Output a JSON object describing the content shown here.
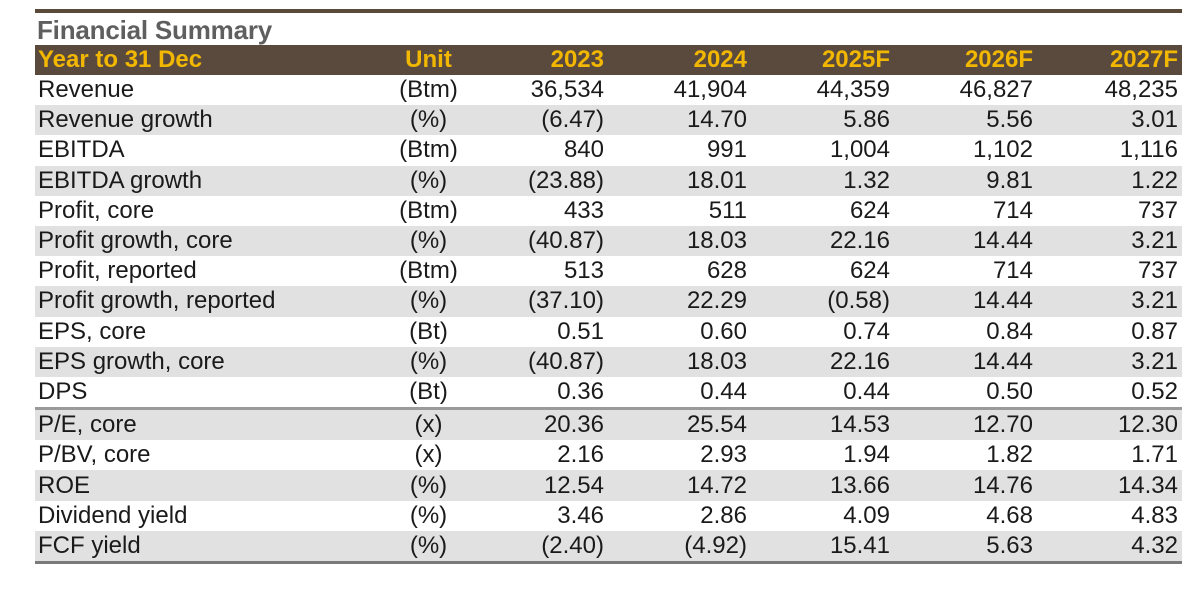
{
  "title": "Financial Summary",
  "header": {
    "label": "Year to 31 Dec",
    "unit": "Unit",
    "years": [
      "2023",
      "2024",
      "2025F",
      "2026F",
      "2027F"
    ]
  },
  "rows": [
    {
      "label": "Revenue",
      "unit": "(Btm)",
      "values": [
        "36,534",
        "41,904",
        "44,359",
        "46,827",
        "48,235"
      ]
    },
    {
      "label": "Revenue growth",
      "unit": "(%)",
      "values": [
        "(6.47)",
        "14.70",
        "5.86",
        "5.56",
        "3.01"
      ]
    },
    {
      "label": "EBITDA",
      "unit": "(Btm)",
      "values": [
        "840",
        "991",
        "1,004",
        "1,102",
        "1,116"
      ]
    },
    {
      "label": "EBITDA growth",
      "unit": "(%)",
      "values": [
        "(23.88)",
        "18.01",
        "1.32",
        "9.81",
        "1.22"
      ]
    },
    {
      "label": "Profit, core",
      "unit": "(Btm)",
      "values": [
        "433",
        "511",
        "624",
        "714",
        "737"
      ]
    },
    {
      "label": "Profit growth, core",
      "unit": "(%)",
      "values": [
        "(40.87)",
        "18.03",
        "22.16",
        "14.44",
        "3.21"
      ]
    },
    {
      "label": "Profit, reported",
      "unit": "(Btm)",
      "values": [
        "513",
        "628",
        "624",
        "714",
        "737"
      ]
    },
    {
      "label": "Profit growth, reported",
      "unit": "(%)",
      "values": [
        "(37.10)",
        "22.29",
        "(0.58)",
        "14.44",
        "3.21"
      ]
    },
    {
      "label": "EPS, core",
      "unit": "(Bt)",
      "values": [
        "0.51",
        "0.60",
        "0.74",
        "0.84",
        "0.87"
      ]
    },
    {
      "label": "EPS growth, core",
      "unit": "(%)",
      "values": [
        "(40.87)",
        "18.03",
        "22.16",
        "14.44",
        "3.21"
      ]
    },
    {
      "label": "DPS",
      "unit": "(Bt)",
      "values": [
        "0.36",
        "0.44",
        "0.44",
        "0.50",
        "0.52"
      ]
    },
    {
      "label": "P/E, core",
      "unit": "(x)",
      "values": [
        "20.36",
        "25.54",
        "14.53",
        "12.70",
        "12.30"
      ]
    },
    {
      "label": "P/BV, core",
      "unit": "(x)",
      "values": [
        "2.16",
        "2.93",
        "1.94",
        "1.82",
        "1.71"
      ]
    },
    {
      "label": "ROE",
      "unit": "(%)",
      "values": [
        "12.54",
        "14.72",
        "13.66",
        "14.76",
        "14.34"
      ]
    },
    {
      "label": "Dividend yield",
      "unit": "(%)",
      "values": [
        "3.46",
        "2.86",
        "4.09",
        "4.68",
        "4.83"
      ]
    },
    {
      "label": "FCF yield",
      "unit": "(%)",
      "values": [
        "(2.40)",
        "(4.92)",
        "15.41",
        "5.63",
        "4.32"
      ]
    }
  ]
}
